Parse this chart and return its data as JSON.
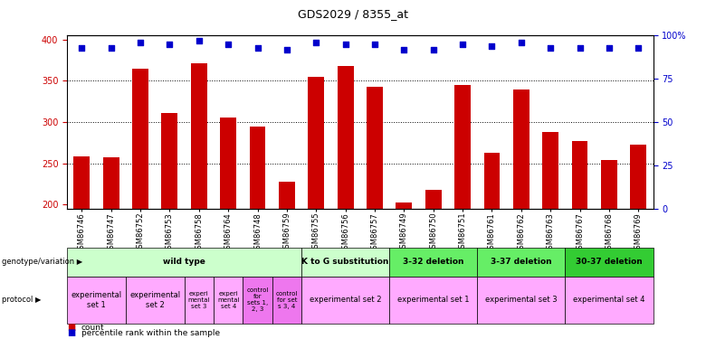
{
  "title": "GDS2029 / 8355_at",
  "samples": [
    "GSM86746",
    "GSM86747",
    "GSM86752",
    "GSM86753",
    "GSM86758",
    "GSM86764",
    "GSM86748",
    "GSM86759",
    "GSM86755",
    "GSM86756",
    "GSM86757",
    "GSM86749",
    "GSM86750",
    "GSM86751",
    "GSM86761",
    "GSM86762",
    "GSM86763",
    "GSM86767",
    "GSM86768",
    "GSM86769"
  ],
  "counts": [
    258,
    257,
    365,
    311,
    371,
    305,
    294,
    227,
    355,
    368,
    343,
    202,
    218,
    345,
    263,
    340,
    288,
    277,
    254,
    273
  ],
  "percentiles": [
    93,
    93,
    96,
    95,
    97,
    95,
    93,
    92,
    96,
    95,
    95,
    92,
    92,
    95,
    94,
    96,
    93,
    93,
    93,
    93
  ],
  "ylim_left": [
    195,
    405
  ],
  "ylim_right": [
    0,
    100
  ],
  "yticks_left": [
    200,
    250,
    300,
    350,
    400
  ],
  "yticks_right": [
    0,
    25,
    50,
    75,
    100
  ],
  "bar_color": "#cc0000",
  "dot_color": "#0000cc",
  "bg_color": "#ffffff",
  "genotype_groups": [
    {
      "label": "wild type",
      "start": 0,
      "end": 7,
      "color": "#ccffcc"
    },
    {
      "label": "K to G substitution",
      "start": 8,
      "end": 10,
      "color": "#ccffcc"
    },
    {
      "label": "3-32 deletion",
      "start": 11,
      "end": 13,
      "color": "#66ee66"
    },
    {
      "label": "3-37 deletion",
      "start": 14,
      "end": 16,
      "color": "#66ee66"
    },
    {
      "label": "30-37 deletion",
      "start": 17,
      "end": 19,
      "color": "#33cc33"
    }
  ],
  "protocol_groups": [
    {
      "label": "experimental\nset 1",
      "start": 0,
      "end": 1,
      "color": "#ffaaff"
    },
    {
      "label": "experimental\nset 2",
      "start": 2,
      "end": 3,
      "color": "#ffaaff"
    },
    {
      "label": "experi\nmental\nset 3",
      "start": 4,
      "end": 4,
      "color": "#ffaaff"
    },
    {
      "label": "experi\nmental\nset 4",
      "start": 5,
      "end": 5,
      "color": "#ffaaff"
    },
    {
      "label": "control\nfor\nsets 1,\n2, 3",
      "start": 6,
      "end": 6,
      "color": "#ee77ee"
    },
    {
      "label": "control\nfor set\ns 3, 4",
      "start": 7,
      "end": 7,
      "color": "#ee77ee"
    },
    {
      "label": "experimental set 2",
      "start": 8,
      "end": 10,
      "color": "#ffaaff"
    },
    {
      "label": "experimental set 1",
      "start": 11,
      "end": 13,
      "color": "#ffaaff"
    },
    {
      "label": "experimental set 3",
      "start": 14,
      "end": 16,
      "color": "#ffaaff"
    },
    {
      "label": "experimental set 4",
      "start": 17,
      "end": 19,
      "color": "#ffaaff"
    }
  ],
  "tick_color_left": "#cc0000",
  "tick_color_right": "#0000cc"
}
